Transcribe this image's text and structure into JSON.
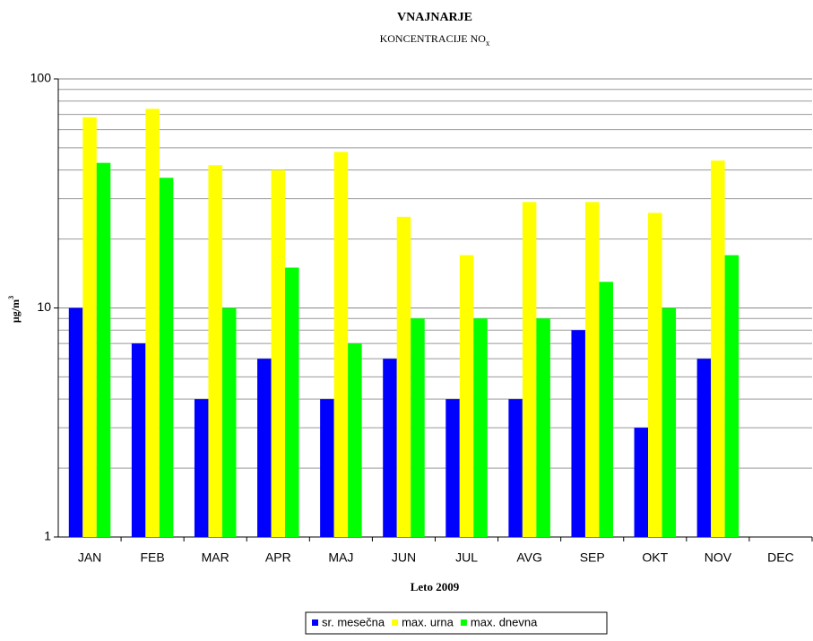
{
  "chart_data": {
    "type": "bar",
    "title": "VNAJNARJE",
    "subtitle": "KONCENTRACIJE  NO",
    "subtitle_subscript": "x",
    "y_label": "µg/m",
    "y_label_superscript": "3",
    "x_label": "Leto 2009",
    "categories": [
      "JAN",
      "FEB",
      "MAR",
      "APR",
      "MAJ",
      "JUN",
      "JUL",
      "AVG",
      "SEP",
      "OKT",
      "NOV",
      "DEC"
    ],
    "series": [
      {
        "name": "sr. mesečna",
        "color": "#0000ff",
        "values": [
          10,
          7,
          4,
          6,
          4,
          6,
          4,
          4,
          8,
          3,
          6,
          null
        ]
      },
      {
        "name": "max. urna",
        "color": "#ffff00",
        "values": [
          68,
          74,
          42,
          40,
          48,
          25,
          17,
          29,
          29,
          26,
          44,
          null
        ]
      },
      {
        "name": "max. dnevna",
        "color": "#00ff00",
        "values": [
          43,
          37,
          10,
          15,
          7,
          9,
          9,
          9,
          13,
          10,
          17,
          null
        ]
      }
    ],
    "log_scale": true,
    "ylim": [
      1,
      100
    ],
    "yticks": [
      1,
      10,
      100
    ],
    "grid": true,
    "legend": "bottom"
  }
}
